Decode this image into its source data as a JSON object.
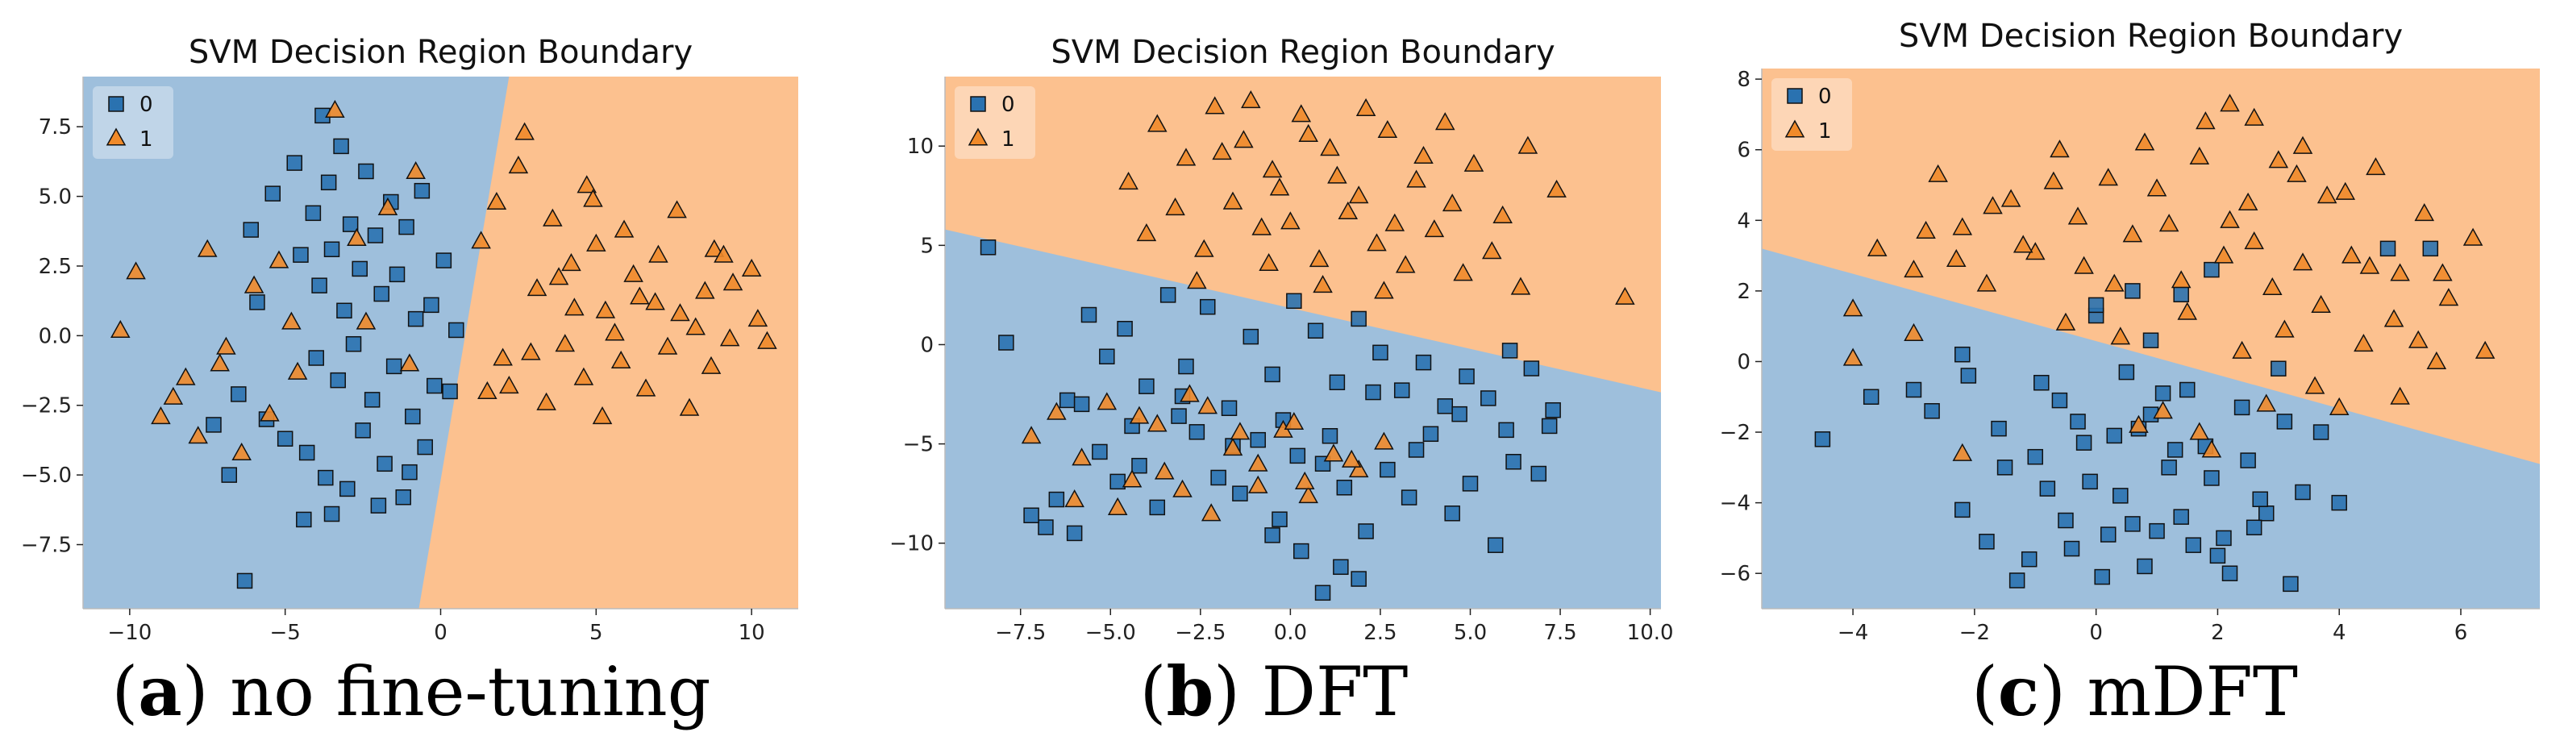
{
  "chart_data": [
    {
      "type": "scatter",
      "title": "SVM Decision Region Boundary",
      "caption": {
        "letter": "a",
        "text": "no fine-tuning"
      },
      "xlim": [
        -11.5,
        11.5
      ],
      "ylim": [
        -9.8,
        9.3
      ],
      "xticks": [
        -10,
        -5,
        0,
        5,
        10
      ],
      "xtick_labels": [
        "−10",
        "−5",
        "0",
        "5",
        "10"
      ],
      "yticks": [
        -7.5,
        -5.0,
        -2.5,
        0.0,
        2.5,
        5.0,
        7.5
      ],
      "ytick_labels": [
        "−7.5",
        "−5.0",
        "−2.5",
        "0.0",
        "2.5",
        "5.0",
        "7.5"
      ],
      "boundary": [
        [
          -0.7,
          -9.8
        ],
        [
          2.2,
          9.3
        ]
      ],
      "region_left_class": "0",
      "legend": [
        "0",
        "1"
      ],
      "colors": {
        "class0_region": "#9ebfdc",
        "class1_region": "#fcc18f",
        "class0_marker": "#2a72b0",
        "class1_marker": "#f08a2a"
      },
      "series": [
        {
          "name": "0",
          "marker": "square",
          "x": [
            -6.1,
            -5.9,
            -5.4,
            -4.7,
            -4.5,
            -4.1,
            -3.9,
            -3.8,
            -3.6,
            -3.5,
            -3.2,
            -3.1,
            -2.9,
            -2.6,
            -2.4,
            -2.1,
            -1.9,
            -1.6,
            -1.4,
            -1.1,
            -0.8,
            -0.6,
            -0.3,
            0.1,
            0.5,
            -4.0,
            -3.3,
            -2.8,
            -2.2,
            -1.5,
            -0.9,
            -0.2,
            -5.0,
            -4.3,
            -3.7,
            -2.5,
            -1.8,
            -1.2,
            -0.5,
            -6.5,
            -5.6,
            -4.4,
            -3.0,
            -2.0,
            -1.0,
            0.3,
            -7.3,
            -6.8,
            -3.5,
            -6.3
          ],
          "y": [
            3.8,
            1.2,
            5.1,
            6.2,
            2.9,
            4.4,
            1.8,
            7.9,
            5.5,
            3.1,
            6.8,
            0.9,
            4.0,
            2.4,
            5.9,
            3.6,
            1.5,
            4.8,
            2.2,
            3.9,
            0.6,
            5.2,
            1.1,
            2.7,
            0.2,
            -0.8,
            -1.6,
            -0.3,
            -2.3,
            -1.1,
            -2.9,
            -1.8,
            -3.7,
            -4.2,
            -5.1,
            -3.4,
            -4.6,
            -5.8,
            -4.0,
            -2.1,
            -3.0,
            -6.6,
            -5.5,
            -6.1,
            -4.9,
            -2.0,
            -3.2,
            -5.0,
            -6.4,
            -8.8
          ]
        },
        {
          "name": "1",
          "marker": "triangle",
          "x": [
            -10.3,
            -9.8,
            -9.0,
            -8.2,
            -7.5,
            -6.9,
            -6.0,
            -5.2,
            -4.6,
            -4.8,
            -5.5,
            -7.8,
            -8.6,
            -3.4,
            -2.7,
            -1.7,
            -0.8,
            -6.4,
            -7.1,
            1.3,
            1.8,
            2.5,
            3.1,
            3.6,
            4.2,
            4.7,
            5.3,
            5.9,
            6.4,
            7.0,
            7.6,
            8.2,
            8.8,
            9.4,
            10.0,
            2.2,
            2.9,
            3.4,
            4.0,
            4.6,
            5.2,
            5.8,
            6.6,
            7.3,
            8.0,
            8.7,
            9.3,
            10.2,
            10.5,
            3.8,
            4.3,
            5.0,
            5.6,
            6.2,
            6.9,
            7.7,
            8.5,
            9.1,
            2.7,
            4.9,
            1.5,
            2.0,
            -1.0,
            -2.4
          ],
          "y": [
            0.2,
            2.3,
            -2.9,
            -1.5,
            3.1,
            -0.4,
            1.8,
            2.7,
            -1.3,
            0.5,
            -2.8,
            -3.6,
            -2.2,
            8.1,
            3.5,
            4.6,
            5.9,
            -4.2,
            -1.0,
            3.4,
            4.8,
            6.1,
            1.7,
            4.2,
            2.6,
            5.4,
            0.9,
            3.8,
            1.4,
            2.9,
            4.5,
            0.3,
            3.1,
            1.9,
            2.4,
            -1.8,
            -0.6,
            -2.4,
            -0.3,
            -1.5,
            -2.9,
            -0.9,
            -1.9,
            -0.4,
            -2.6,
            -1.1,
            -0.1,
            0.6,
            -0.2,
            2.1,
            1.0,
            3.3,
            0.1,
            2.2,
            1.2,
            0.8,
            1.6,
            2.9,
            7.3,
            4.9,
            -2.0,
            -0.8,
            -1.0,
            0.5
          ]
        }
      ]
    },
    {
      "type": "scatter",
      "title": "SVM Decision Region Boundary",
      "caption": {
        "letter": "b",
        "text": "DFT"
      },
      "xlim": [
        -9.6,
        10.3
      ],
      "ylim": [
        -13.3,
        13.5
      ],
      "xticks": [
        -7.5,
        -5.0,
        -2.5,
        0.0,
        2.5,
        5.0,
        7.5,
        10.0
      ],
      "xtick_labels": [
        "−7.5",
        "−5.0",
        "−2.5",
        "0.0",
        "2.5",
        "5.0",
        "7.5",
        "10.0"
      ],
      "yticks": [
        -10,
        -5,
        0,
        5,
        10
      ],
      "ytick_labels": [
        "−10",
        "−5",
        "0",
        "5",
        "10"
      ],
      "boundary": [
        [
          -9.6,
          5.8
        ],
        [
          10.3,
          -2.4
        ]
      ],
      "region_left_class": "0",
      "legend": [
        "0",
        "1"
      ],
      "colors": {
        "class0_region": "#9ebfdc",
        "class1_region": "#fcc18f",
        "class0_marker": "#2a72b0",
        "class1_marker": "#f08a2a"
      },
      "series": [
        {
          "name": "0",
          "marker": "square",
          "x": [
            -8.4,
            -7.9,
            -6.8,
            -6.2,
            -5.6,
            -5.1,
            -4.6,
            -4.0,
            -3.4,
            -2.9,
            -2.3,
            -1.7,
            -1.1,
            -0.5,
            0.1,
            0.7,
            1.3,
            1.9,
            2.5,
            3.1,
            3.7,
            4.3,
            4.9,
            5.5,
            6.1,
            6.7,
            7.2,
            -6.5,
            -5.3,
            -4.2,
            -3.1,
            -2.0,
            -0.9,
            0.2,
            1.5,
            2.7,
            3.9,
            5.0,
            6.2,
            -7.2,
            -6.0,
            -4.8,
            -3.7,
            -2.6,
            -1.4,
            -0.3,
            0.9,
            2.1,
            3.3,
            4.5,
            5.7,
            6.9,
            -5.8,
            -4.4,
            -3.0,
            -1.6,
            -0.2,
            1.1,
            2.3,
            3.5,
            4.7,
            6.0,
            7.3,
            0.9,
            1.4,
            0.3,
            1.9,
            -0.5
          ],
          "y": [
            4.9,
            0.1,
            -9.2,
            -2.8,
            1.5,
            -0.6,
            0.8,
            -2.1,
            2.5,
            -1.1,
            1.9,
            -3.2,
            0.4,
            -1.5,
            2.2,
            0.7,
            -1.9,
            1.3,
            -0.4,
            -2.3,
            -0.9,
            -3.1,
            -1.6,
            -2.7,
            -0.3,
            -1.2,
            -4.1,
            -7.8,
            -5.4,
            -6.1,
            -3.6,
            -6.7,
            -4.8,
            -5.6,
            -7.2,
            -6.3,
            -4.5,
            -7.0,
            -5.9,
            -8.6,
            -9.5,
            -6.9,
            -8.2,
            -4.4,
            -7.5,
            -8.8,
            -6.0,
            -9.4,
            -7.7,
            -8.5,
            -10.1,
            -6.5,
            -3.0,
            -4.1,
            -2.6,
            -5.1,
            -3.8,
            -4.6,
            -2.4,
            -5.3,
            -3.5,
            -4.3,
            -3.3,
            -12.5,
            -11.2,
            -10.4,
            -11.8,
            -9.6
          ]
        },
        {
          "name": "1",
          "marker": "triangle",
          "x": [
            -4.5,
            -3.7,
            -2.9,
            -2.1,
            -1.3,
            -0.5,
            0.3,
            1.1,
            1.9,
            2.7,
            3.5,
            4.3,
            5.1,
            5.9,
            6.6,
            7.4,
            -4.0,
            -3.2,
            -2.4,
            -1.6,
            -0.8,
            0.0,
            0.8,
            1.6,
            2.4,
            3.2,
            4.0,
            4.8,
            5.6,
            6.4,
            9.3,
            -1.9,
            -1.1,
            -0.3,
            0.5,
            1.3,
            2.1,
            2.9,
            3.7,
            4.5,
            -2.6,
            -0.6,
            0.9,
            2.6,
            -7.2,
            -6.5,
            -5.8,
            -5.1,
            -4.4,
            -3.7,
            -3.0,
            -2.3,
            -1.6,
            -0.9,
            -0.2,
            0.5,
            1.2,
            1.9,
            2.6,
            -6.0,
            -4.8,
            -3.5,
            -2.2,
            -0.9,
            0.4,
            1.7,
            -4.2,
            -2.8,
            -1.4,
            0.1
          ],
          "y": [
            8.2,
            11.1,
            9.4,
            12.0,
            10.3,
            8.8,
            11.6,
            9.9,
            7.5,
            10.8,
            8.3,
            11.2,
            9.1,
            6.5,
            10.0,
            7.8,
            5.6,
            6.9,
            4.8,
            7.2,
            5.9,
            6.2,
            4.3,
            6.7,
            5.1,
            4.0,
            5.8,
            3.6,
            4.7,
            2.9,
            2.4,
            9.7,
            12.3,
            7.9,
            10.6,
            8.5,
            11.9,
            6.1,
            9.5,
            7.1,
            3.2,
            4.1,
            3.0,
            2.7,
            -4.6,
            -3.4,
            -5.7,
            -2.9,
            -6.8,
            -4.0,
            -7.3,
            -3.1,
            -5.2,
            -6.0,
            -4.3,
            -7.6,
            -5.5,
            -6.3,
            -4.9,
            -7.8,
            -8.2,
            -6.4,
            -8.5,
            -7.1,
            -6.9,
            -5.8,
            -3.6,
            -2.5,
            -4.4,
            -3.9
          ]
        }
      ]
    },
    {
      "type": "scatter",
      "title": "SVM Decision Region Boundary",
      "caption": {
        "letter": "c",
        "text": "mDFT"
      },
      "xlim": [
        -5.5,
        7.3
      ],
      "ylim": [
        -7.0,
        8.3
      ],
      "xticks": [
        -4,
        -2,
        0,
        2,
        4,
        6
      ],
      "xtick_labels": [
        "−4",
        "−2",
        "0",
        "2",
        "4",
        "6"
      ],
      "yticks": [
        -6,
        -4,
        -2,
        0,
        2,
        4,
        6,
        8
      ],
      "ytick_labels": [
        "−6",
        "−4",
        "−2",
        "0",
        "2",
        "4",
        "6",
        "8"
      ],
      "boundary": [
        [
          -5.5,
          3.2
        ],
        [
          7.3,
          -2.9
        ]
      ],
      "region_left_class": "0",
      "legend": [
        "0",
        "1"
      ],
      "colors": {
        "class0_region": "#9ebfdc",
        "class1_region": "#fcc18f",
        "class0_marker": "#2a72b0",
        "class1_marker": "#f08a2a"
      },
      "series": [
        {
          "name": "0",
          "marker": "square",
          "x": [
            -4.5,
            -3.7,
            -3.0,
            -2.7,
            -2.2,
            -1.8,
            -1.5,
            -1.1,
            -0.8,
            -0.5,
            -0.2,
            0.1,
            0.4,
            0.7,
            1.0,
            1.3,
            1.6,
            1.9,
            2.2,
            2.5,
            2.8,
            3.1,
            3.4,
            3.7,
            4.0,
            -2.1,
            -1.6,
            -1.0,
            -0.6,
            -0.1,
            0.3,
            0.6,
            0.9,
            1.2,
            1.5,
            1.8,
            2.1,
            2.4,
            2.7,
            3.0,
            -1.3,
            -0.4,
            0.2,
            0.8,
            1.4,
            2.0,
            2.6,
            3.2,
            -0.9,
            -0.3,
            0.5,
            1.1,
            0.0,
            0.6,
            -2.2,
            0.0,
            4.8,
            5.5,
            1.4,
            1.9,
            0.9
          ],
          "y": [
            -2.2,
            -1.0,
            -0.8,
            -1.4,
            -4.2,
            -5.1,
            -3.0,
            -5.6,
            -3.6,
            -4.5,
            -2.3,
            -6.1,
            -3.8,
            -1.9,
            -4.8,
            -2.5,
            -5.2,
            -3.3,
            -6.0,
            -2.8,
            -4.3,
            -1.7,
            -3.7,
            -2.0,
            -4.0,
            -0.4,
            -1.9,
            -2.7,
            -1.1,
            -3.4,
            -2.1,
            -4.6,
            -1.5,
            -3.0,
            -0.8,
            -2.4,
            -5.0,
            -1.3,
            -3.9,
            -0.2,
            -6.2,
            -5.3,
            -4.9,
            -5.8,
            -4.4,
            -5.5,
            -4.7,
            -6.3,
            -0.6,
            -1.7,
            -0.3,
            -0.9,
            1.3,
            2.0,
            0.2,
            1.6,
            3.2,
            3.2,
            1.9,
            2.6,
            0.6
          ]
        },
        {
          "name": "1",
          "marker": "triangle",
          "x": [
            -4.0,
            -3.6,
            -3.0,
            -2.6,
            -2.2,
            -1.8,
            -1.4,
            -1.0,
            -0.6,
            -0.2,
            0.2,
            0.6,
            1.0,
            1.4,
            1.8,
            2.2,
            2.6,
            3.0,
            3.4,
            3.8,
            4.2,
            4.6,
            5.0,
            5.4,
            5.8,
            6.2,
            -2.8,
            -2.3,
            -1.7,
            -1.2,
            -0.7,
            -0.3,
            0.3,
            0.8,
            1.2,
            1.7,
            2.1,
            2.5,
            2.9,
            3.3,
            3.7,
            4.1,
            4.5,
            4.9,
            5.3,
            5.7,
            -0.5,
            0.4,
            1.5,
            2.4,
            3.1,
            4.4,
            -4.0,
            -3.0,
            -2.2,
            1.9,
            2.2,
            2.6,
            3.4,
            5.6,
            6.4,
            5.0,
            4.0,
            1.1,
            0.7,
            1.7,
            2.8,
            3.6
          ],
          "y": [
            1.5,
            3.2,
            2.6,
            5.3,
            3.8,
            2.2,
            4.6,
            3.1,
            6.0,
            2.7,
            5.2,
            3.6,
            4.9,
            2.3,
            6.8,
            4.0,
            3.4,
            5.7,
            2.8,
            4.7,
            3.0,
            5.5,
            2.5,
            4.2,
            1.8,
            3.5,
            3.7,
            2.9,
            4.4,
            3.3,
            5.1,
            4.1,
            2.2,
            6.2,
            3.9,
            5.8,
            3.0,
            4.5,
            2.1,
            5.3,
            1.6,
            4.8,
            2.7,
            1.2,
            0.6,
            2.5,
            1.1,
            0.7,
            1.4,
            0.3,
            0.9,
            0.5,
            0.1,
            0.8,
            -2.6,
            -2.5,
            7.3,
            6.9,
            6.1,
            0.0,
            0.3,
            -1.0,
            -1.3,
            -1.4,
            -1.8,
            -2.0,
            -1.2,
            -0.7
          ]
        }
      ]
    }
  ]
}
